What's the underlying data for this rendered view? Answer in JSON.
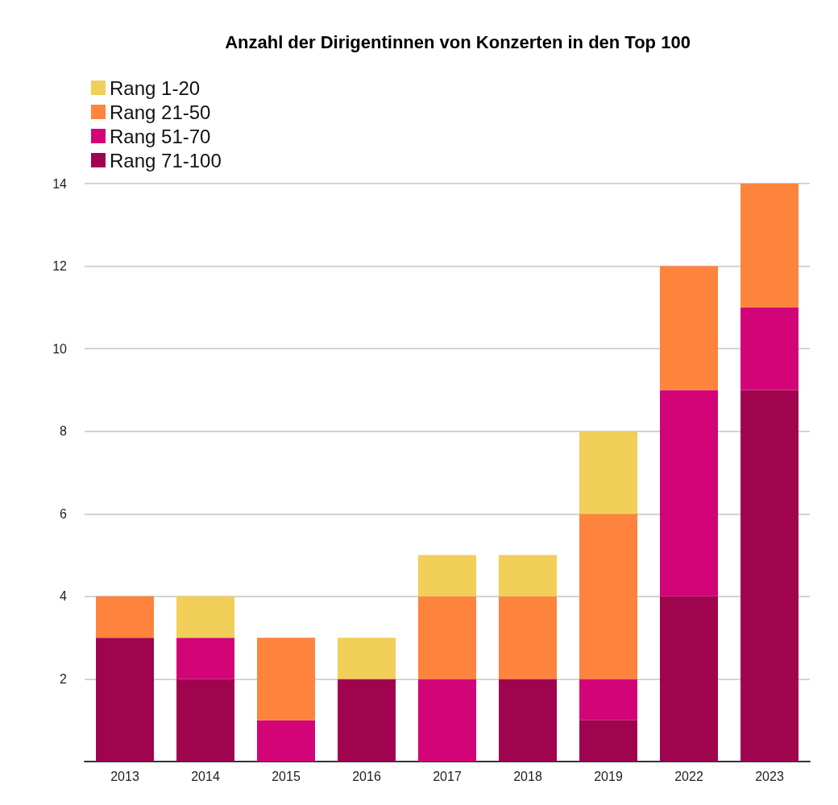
{
  "chart_data": {
    "type": "bar",
    "title": "Anzahl der Dirigentinnen von Konzerten in den Top 100",
    "categories": [
      "2013",
      "2014",
      "2015",
      "2016",
      "2017",
      "2018",
      "2019",
      "2022",
      "2023"
    ],
    "stacked": true,
    "series": [
      {
        "name": "Rang 71-100",
        "color": "#a1044f",
        "values": [
          3,
          2,
          0,
          2,
          0,
          2,
          1,
          4,
          9
        ]
      },
      {
        "name": "Rang 51-70",
        "color": "#d20477",
        "values": [
          0,
          1,
          1,
          0,
          2,
          0,
          1,
          5,
          2
        ]
      },
      {
        "name": "Rang 21-50",
        "color": "#fe843e",
        "values": [
          1,
          0,
          2,
          0,
          2,
          2,
          4,
          3,
          3
        ]
      },
      {
        "name": "Rang 1-20",
        "color": "#f1cf58",
        "values": [
          0,
          1,
          0,
          1,
          1,
          1,
          2,
          0,
          0
        ]
      }
    ],
    "ylim": [
      0,
      14
    ],
    "yticks": [
      2,
      4,
      6,
      8,
      10,
      12,
      14
    ],
    "grid": "y",
    "legend": "top left"
  }
}
